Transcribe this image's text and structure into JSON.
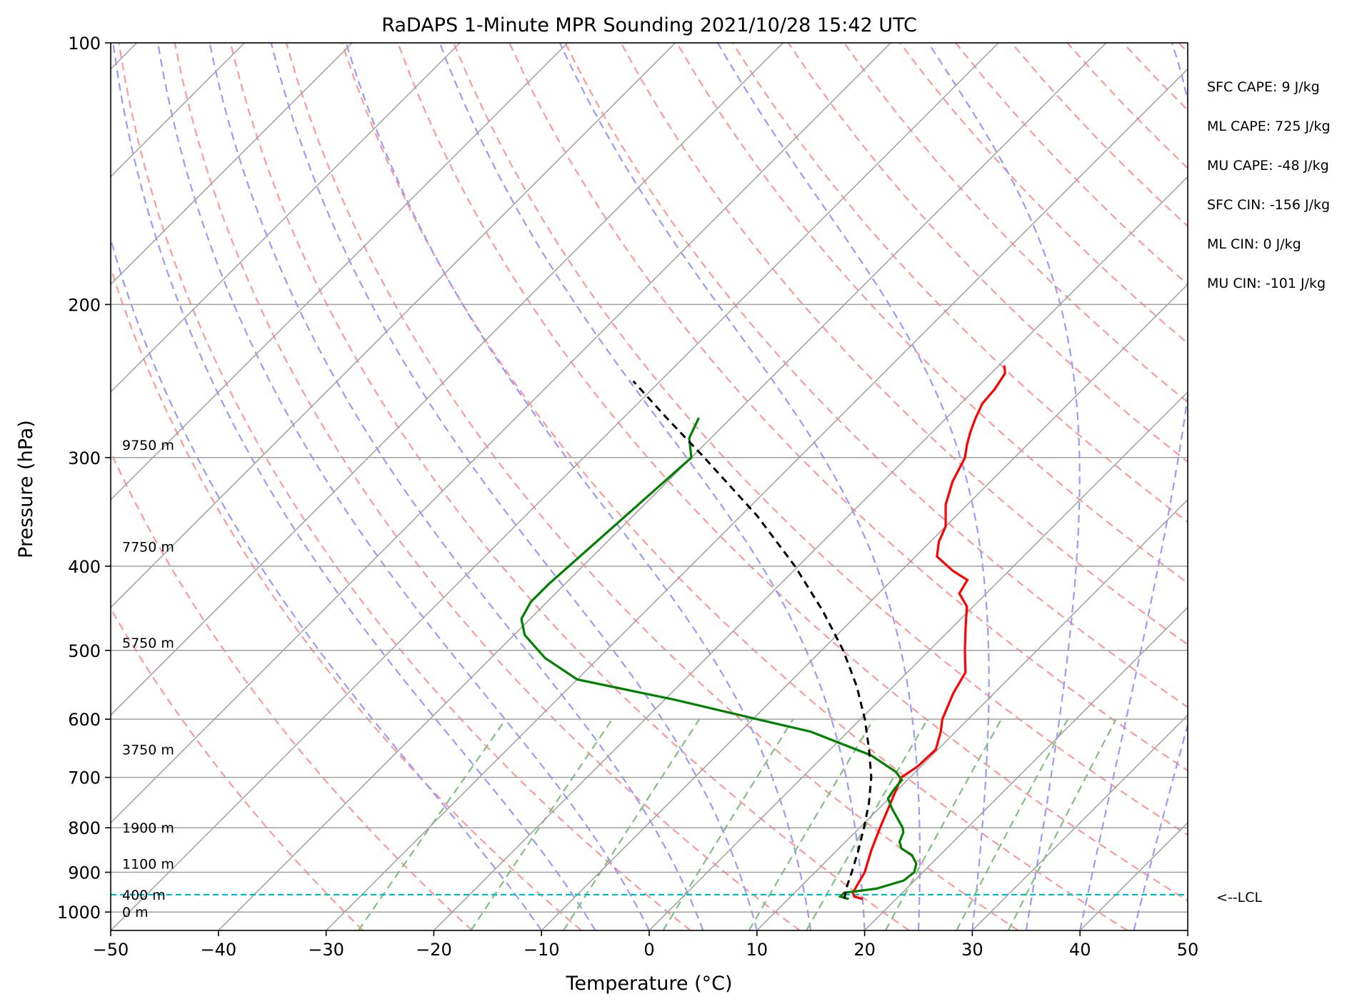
{
  "chart_data": {
    "type": "line",
    "title": "RaDAPS 1-Minute MPR Sounding 2021/10/28 15:42 UTC",
    "xlabel": "Temperature (°C)",
    "ylabel": "Pressure (hPa)",
    "xlim": [
      -50,
      50
    ],
    "ylim": [
      1050,
      100
    ],
    "y_scale": "log",
    "x_ticks": [
      "−50",
      "−40",
      "−30",
      "−20",
      "−10",
      "0",
      "10",
      "20",
      "30",
      "40",
      "50"
    ],
    "y_ticks": [
      "100",
      "200",
      "300",
      "400",
      "500",
      "600",
      "700",
      "800",
      "900",
      "1000"
    ],
    "grid": true,
    "series": [
      {
        "role": "temperature",
        "color": "#ff0000",
        "points": [
          [
            966,
            16.9
          ],
          [
            960,
            15.9
          ],
          [
            950,
            15.4
          ],
          [
            900,
            14.6
          ],
          [
            850,
            13.2
          ],
          [
            800,
            11.9
          ],
          [
            750,
            10.6
          ],
          [
            700,
            9.2
          ],
          [
            680,
            9.7
          ],
          [
            650,
            9.8
          ],
          [
            620,
            8.6
          ],
          [
            600,
            7.6
          ],
          [
            560,
            6.2
          ],
          [
            530,
            5.4
          ],
          [
            500,
            3.3
          ],
          [
            470,
            1.2
          ],
          [
            445,
            -0.6
          ],
          [
            430,
            -2.5
          ],
          [
            415,
            -3.0
          ],
          [
            405,
            -5.2
          ],
          [
            390,
            -8.0
          ],
          [
            375,
            -9.2
          ],
          [
            360,
            -10.0
          ],
          [
            340,
            -12.0
          ],
          [
            320,
            -13.5
          ],
          [
            300,
            -14.6
          ],
          [
            290,
            -15.6
          ],
          [
            280,
            -16.5
          ],
          [
            270,
            -17.3
          ],
          [
            260,
            -18.0
          ],
          [
            250,
            -18.2
          ],
          [
            240,
            -18.7
          ],
          [
            235,
            -19.5
          ]
        ]
      },
      {
        "role": "dewpoint",
        "color": "#008000",
        "points": [
          [
            966,
            15.6
          ],
          [
            960,
            14.6
          ],
          [
            950,
            14.6
          ],
          [
            940,
            17.2
          ],
          [
            920,
            19.0
          ],
          [
            900,
            19.2
          ],
          [
            880,
            18.6
          ],
          [
            860,
            17.4
          ],
          [
            845,
            15.8
          ],
          [
            830,
            15.0
          ],
          [
            810,
            14.5
          ],
          [
            800,
            14.0
          ],
          [
            760,
            11.2
          ],
          [
            740,
            9.9
          ],
          [
            720,
            9.6
          ],
          [
            705,
            9.5
          ],
          [
            690,
            8.2
          ],
          [
            660,
            4.3
          ],
          [
            620,
            -3.5
          ],
          [
            600,
            -9.6
          ],
          [
            570,
            -19.0
          ],
          [
            540,
            -30.0
          ],
          [
            510,
            -35.0
          ],
          [
            480,
            -39.0
          ],
          [
            460,
            -40.8
          ],
          [
            440,
            -41.5
          ],
          [
            420,
            -41.5
          ],
          [
            300,
            -40.0
          ],
          [
            285,
            -42.0
          ],
          [
            270,
            -43.0
          ]
        ]
      },
      {
        "role": "parcel",
        "color": "#000000",
        "points": [
          [
            966,
            15.2
          ],
          [
            940,
            14.4
          ],
          [
            900,
            13.4
          ],
          [
            850,
            12.0
          ],
          [
            800,
            10.4
          ],
          [
            750,
            8.6
          ],
          [
            700,
            6.4
          ],
          [
            650,
            3.6
          ],
          [
            600,
            0.4
          ],
          [
            550,
            -3.4
          ],
          [
            500,
            -8.0
          ],
          [
            450,
            -13.6
          ],
          [
            400,
            -20.3
          ],
          [
            350,
            -28.5
          ],
          [
            300,
            -38.8
          ],
          [
            270,
            -46.0
          ],
          [
            245,
            -52.5
          ]
        ]
      }
    ],
    "lcl": {
      "pressure": 955,
      "label": "<--LCL",
      "color": "#00bfbf"
    },
    "height_labels": [
      {
        "p": 290,
        "label": "9750 m"
      },
      {
        "p": 380,
        "label": "7750 m"
      },
      {
        "p": 490,
        "label": "5750 m"
      },
      {
        "p": 650,
        "label": "3750 m"
      },
      {
        "p": 800,
        "label": "1900 m"
      },
      {
        "p": 880,
        "label": "1100 m"
      },
      {
        "p": 955,
        "label": "400 m"
      },
      {
        "p": 1000,
        "label": "0 m"
      }
    ],
    "indices": [
      "SFC CAPE: 9 J/kg",
      "ML CAPE: 725 J/kg",
      "MU CAPE: -48 J/kg",
      "SFC CIN: -156 J/kg",
      "ML CIN: 0 J/kg",
      "MU CIN: -101 J/kg"
    ],
    "background": {
      "isotherm_color": "#a0a0a0",
      "dry_adiabat_color": "#ff9a9a",
      "moist_adiabat_color": "#9a9aff",
      "mixing_ratio_color": "#80c080"
    }
  }
}
